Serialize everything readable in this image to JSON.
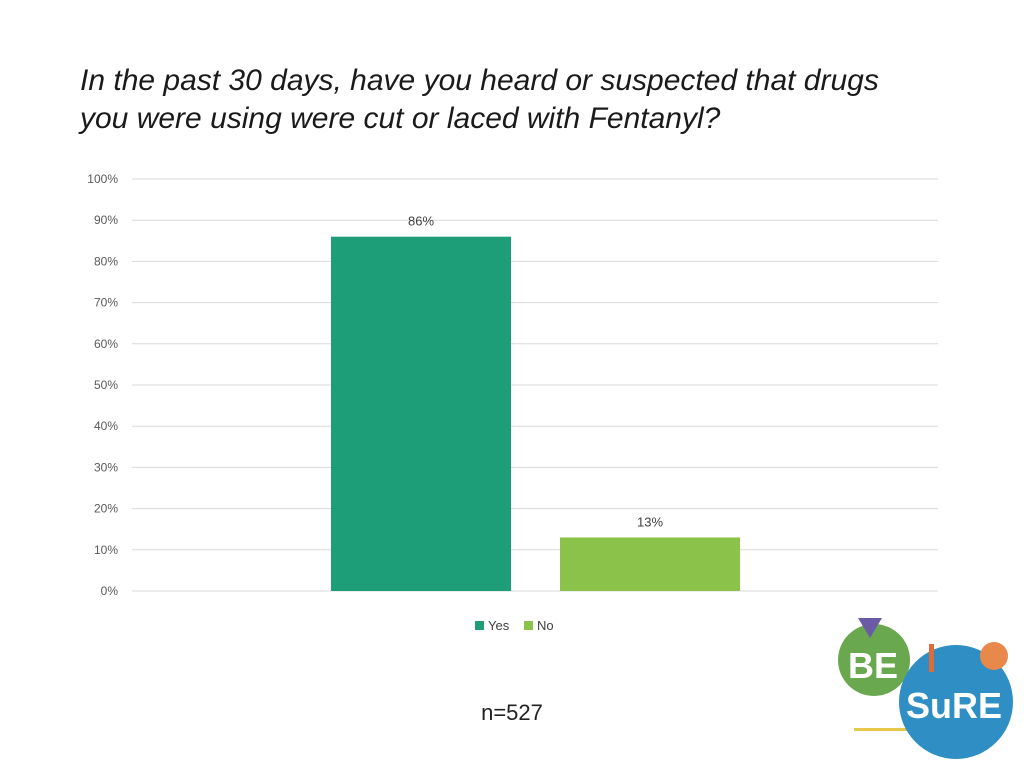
{
  "slide": {
    "title_lines": [
      "In the past 30 days, have you heard or suspected that drugs",
      "you were using were cut or laced with Fentanyl?"
    ],
    "sample_size": "n=527"
  },
  "logo": {
    "text_be": "BE",
    "text_sure": "SuRE",
    "colors": {
      "green": "#6aa84f",
      "blue": "#2f8fc4",
      "purple": "#6b5ba5",
      "orange": "#e8884a",
      "yellow": "#e8c84a"
    }
  },
  "chart_data": {
    "type": "bar",
    "categories": [
      "Yes",
      "No"
    ],
    "values": [
      86,
      13
    ],
    "data_labels": [
      "86%",
      "13%"
    ],
    "colors": [
      "#1e9e78",
      "#8bc34a"
    ],
    "ylim": [
      0,
      100
    ],
    "yticks": [
      0,
      10,
      20,
      30,
      40,
      50,
      60,
      70,
      80,
      90,
      100
    ],
    "ytick_labels": [
      "0%",
      "10%",
      "20%",
      "30%",
      "40%",
      "50%",
      "60%",
      "70%",
      "80%",
      "90%",
      "100%"
    ],
    "grid": true,
    "legend_position": "bottom",
    "legend": [
      "Yes",
      "No"
    ],
    "xlabel": "",
    "ylabel": ""
  }
}
